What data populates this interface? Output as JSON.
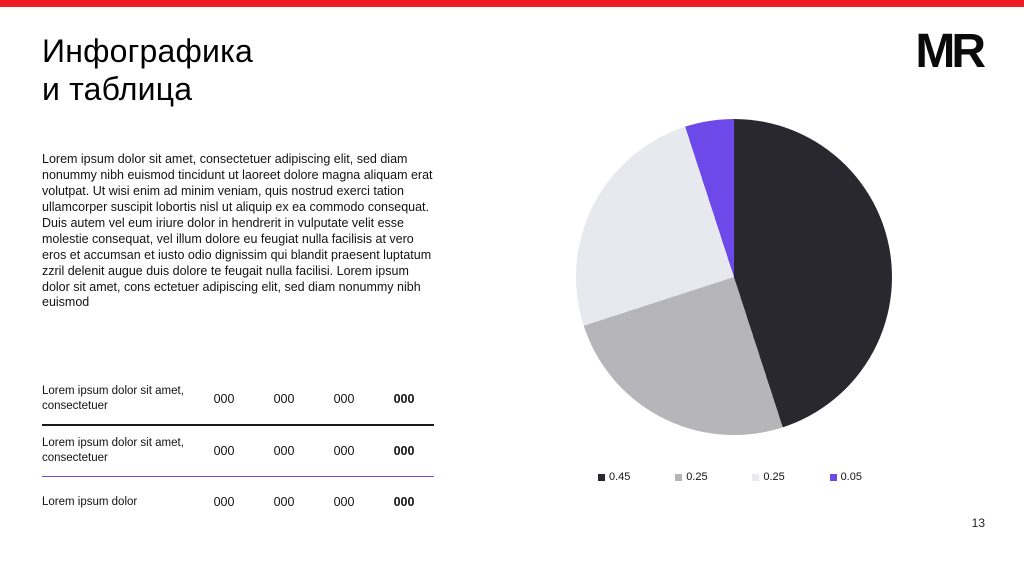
{
  "header": {
    "title": "Инфографика\nи таблица",
    "logo": "MR"
  },
  "colors": {
    "accent_red": "#ee1c25",
    "separator_dark": "#1a1a1a",
    "separator_purple": "#6c49e8"
  },
  "body_text": "Lorem ipsum dolor sit amet, consectetuer adipiscing elit, sed diam nonummy nibh euismod tincidunt ut laoreet dolore magna aliquam erat volutpat. Ut wisi enim ad minim veniam, quis nostrud exerci tation ullamcorper suscipit lobortis nisl ut aliquip ex ea commodo consequat. Duis autem vel eum iriure dolor in hendrerit in vulputate velit esse molestie consequat, vel illum dolore eu feugiat nulla facilisis at vero eros et accumsan et iusto odio dignissim qui blandit praesent luptatum zzril delenit augue duis dolore te feugait nulla facilisi. Lorem ipsum dolor sit amet, cons ectetuer adipiscing elit, sed diam nonummy nibh euismod",
  "table": {
    "rows": [
      {
        "label": "Lorem ipsum dolor sit amet, consectetuer",
        "values": [
          "000",
          "000",
          "000",
          "000"
        ]
      },
      {
        "label": "Lorem ipsum dolor sit amet, consectetuer",
        "values": [
          "000",
          "000",
          "000",
          "000"
        ]
      },
      {
        "label": "Lorem ipsum dolor",
        "values": [
          "000",
          "000",
          "000",
          "000"
        ]
      }
    ]
  },
  "chart_data": {
    "type": "pie",
    "values": [
      0.45,
      0.25,
      0.25,
      0.05
    ],
    "labels": [
      "0.45",
      "0.25",
      "0.25",
      "0.05"
    ],
    "colors": [
      "#28282e",
      "#b5b5ba",
      "#e8e8ef",
      "#6c49e8"
    ],
    "start_angle_deg": 0,
    "direction": "clockwise",
    "legend_position": "bottom",
    "title": ""
  },
  "page_number": "13"
}
